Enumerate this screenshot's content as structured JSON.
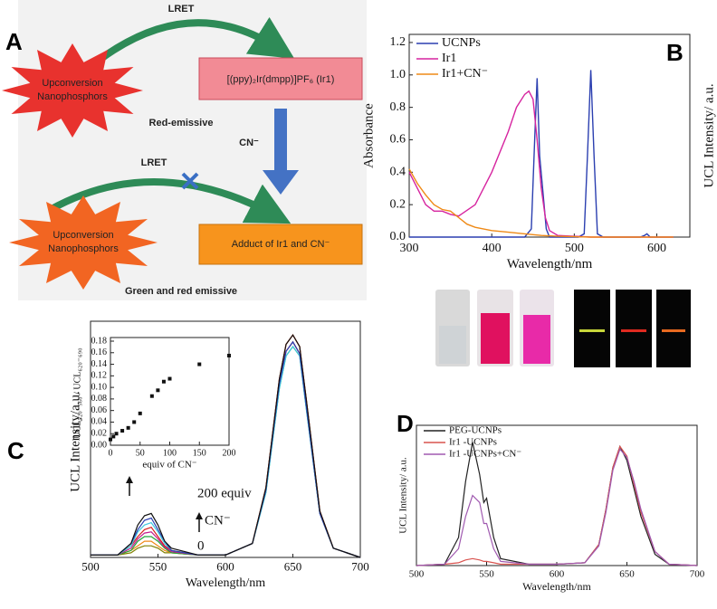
{
  "panel_labels": [
    "A",
    "B",
    "C",
    "D"
  ],
  "panel_a": {
    "top_lret": "LRET",
    "top_star": [
      "Upconversion",
      "Nanophosphors"
    ],
    "top_box": "[(ppy)₂Ir(dmpp)]PF₆ (Ir1)",
    "top_caption": "Red-emissive",
    "arrow_label": "CN⁻",
    "bottom_lret": "LRET",
    "bottom_star": [
      "Upconversion",
      "Nanophosphors"
    ],
    "bottom_box": "Adduct of Ir1 and CN⁻",
    "bottom_caption": "Green and red emissive"
  },
  "chart_data": [
    {
      "type": "line",
      "xlabel": "Wavelength/nm",
      "ylabel": "Absorbance",
      "right_label": "UCL Intensity/ a.u.",
      "xlim": [
        300,
        640
      ],
      "xticks": [
        300,
        400,
        500,
        600
      ],
      "ylim": [
        0,
        1.25
      ],
      "yticks": [
        {
          "value": 0,
          "label": "0.0"
        },
        {
          "value": 0.2,
          "label": "0.2"
        },
        {
          "value": 0.4,
          "label": "0.4"
        },
        {
          "value": 0.6,
          "label": "0.6"
        },
        {
          "value": 0.8,
          "label": "0.8"
        },
        {
          "value": 1,
          "label": "1.0"
        },
        {
          "value": 1.2,
          "label": "1.2"
        }
      ],
      "legend": "upper left",
      "series": [
        {
          "name": "UCNPs",
          "color": "#2b3fb0",
          "x": [
            300,
            440,
            448,
            452,
            455,
            458,
            462,
            466,
            470,
            505,
            512,
            516,
            520,
            524,
            528,
            535,
            580,
            585,
            588,
            592,
            620
          ],
          "values": [
            0,
            0,
            0.05,
            0.6,
            0.98,
            0.5,
            0.28,
            0.05,
            0,
            0,
            0.02,
            0.5,
            1.03,
            0.5,
            0.02,
            0,
            0,
            0.01,
            0.02,
            0,
            0
          ]
        },
        {
          "name": "Ir1",
          "color": "#d6249f",
          "x": [
            300,
            310,
            320,
            330,
            340,
            350,
            360,
            380,
            400,
            420,
            430,
            440,
            445,
            450,
            455,
            460,
            465,
            470,
            480,
            520,
            620
          ],
          "values": [
            0.4,
            0.3,
            0.2,
            0.16,
            0.16,
            0.14,
            0.13,
            0.2,
            0.4,
            0.65,
            0.8,
            0.88,
            0.9,
            0.85,
            0.6,
            0.3,
            0.12,
            0.04,
            0.01,
            0,
            0
          ]
        },
        {
          "name": "Ir1+CN⁻",
          "color": "#ef8a17",
          "x": [
            300,
            310,
            320,
            330,
            340,
            350,
            360,
            370,
            380,
            400,
            420,
            440,
            460,
            480,
            520,
            620
          ],
          "values": [
            0.42,
            0.33,
            0.26,
            0.2,
            0.17,
            0.16,
            0.12,
            0.08,
            0.06,
            0.04,
            0.03,
            0.02,
            0.01,
            0.005,
            0,
            0
          ]
        }
      ]
    },
    {
      "type": "line",
      "xlabel": "Wavelength/nm",
      "ylabel": "UCL Intensity/a.u.",
      "xlim": [
        500,
        700
      ],
      "xticks": [
        500,
        550,
        600,
        650,
        700
      ],
      "ylim": [
        0,
        1
      ],
      "annotations": [
        "200 equiv",
        "CN⁻",
        "0"
      ],
      "x": [
        500,
        520,
        530,
        535,
        540,
        545,
        550,
        555,
        560,
        580,
        600,
        620,
        630,
        640,
        645,
        650,
        655,
        660,
        670,
        680,
        700
      ],
      "series": [
        {
          "color": "#808000",
          "values": [
            0.01,
            0.01,
            0.02,
            0.04,
            0.05,
            0.05,
            0.04,
            0.02,
            0.02,
            0.01,
            0.01,
            0.06,
            0.29,
            0.75,
            0.89,
            0.93,
            0.88,
            0.65,
            0.19,
            0.04,
            0
          ]
        },
        {
          "color": "#ef8a17",
          "values": [
            0.01,
            0.01,
            0.03,
            0.05,
            0.07,
            0.07,
            0.05,
            0.03,
            0.02,
            0.01,
            0.01,
            0.06,
            0.3,
            0.77,
            0.92,
            0.96,
            0.91,
            0.68,
            0.2,
            0.04,
            0
          ]
        },
        {
          "color": "#22a33a",
          "values": [
            0.01,
            0.01,
            0.03,
            0.07,
            0.09,
            0.09,
            0.07,
            0.04,
            0.02,
            0.01,
            0.01,
            0.06,
            0.28,
            0.73,
            0.87,
            0.91,
            0.87,
            0.64,
            0.19,
            0.04,
            0
          ]
        },
        {
          "color": "#c21b8f",
          "values": [
            0.01,
            0.01,
            0.04,
            0.08,
            0.105,
            0.11,
            0.08,
            0.045,
            0.025,
            0.01,
            0.01,
            0.06,
            0.29,
            0.75,
            0.89,
            0.93,
            0.88,
            0.65,
            0.19,
            0.04,
            0
          ]
        },
        {
          "color": "#d42020",
          "values": [
            0.01,
            0.01,
            0.05,
            0.09,
            0.12,
            0.13,
            0.09,
            0.05,
            0.03,
            0.01,
            0.01,
            0.06,
            0.3,
            0.77,
            0.92,
            0.96,
            0.91,
            0.68,
            0.2,
            0.04,
            0
          ]
        },
        {
          "color": "#3fc9e0",
          "values": [
            0.01,
            0.01,
            0.05,
            0.11,
            0.14,
            0.15,
            0.11,
            0.06,
            0.03,
            0.01,
            0.01,
            0.06,
            0.28,
            0.73,
            0.87,
            0.91,
            0.87,
            0.64,
            0.19,
            0.04,
            0
          ]
        },
        {
          "color": "#2b3fb0",
          "values": [
            0.01,
            0.01,
            0.06,
            0.12,
            0.16,
            0.17,
            0.12,
            0.07,
            0.03,
            0.01,
            0.01,
            0.06,
            0.29,
            0.75,
            0.89,
            0.93,
            0.88,
            0.65,
            0.19,
            0.04,
            0
          ]
        },
        {
          "color": "#111111",
          "values": [
            0.01,
            0.01,
            0.06,
            0.14,
            0.18,
            0.19,
            0.14,
            0.07,
            0.04,
            0.01,
            0.01,
            0.06,
            0.3,
            0.77,
            0.92,
            0.96,
            0.91,
            0.68,
            0.2,
            0.04,
            0
          ]
        }
      ]
    },
    {
      "type": "scatter",
      "xlabel": "equiv of CN⁻",
      "ylabel": "UCL₅₂₀₋₅₆₀ / UCL₆₂₀₋₆₉₀",
      "color": "#111111",
      "xlim": [
        0,
        200
      ],
      "xticks": [
        0,
        50,
        100,
        150,
        200
      ],
      "ylim": [
        0,
        0.18
      ],
      "yticks": [
        {
          "value": 0,
          "label": "0.00"
        },
        {
          "value": 0.02,
          "label": "0.02"
        },
        {
          "value": 0.04,
          "label": "0.04"
        },
        {
          "value": 0.06,
          "label": "0.06"
        },
        {
          "value": 0.08,
          "label": "0.08"
        },
        {
          "value": 0.1,
          "label": "0.10"
        },
        {
          "value": 0.12,
          "label": "0.12"
        },
        {
          "value": 0.14,
          "label": "0.14"
        },
        {
          "value": 0.16,
          "label": "0.16"
        },
        {
          "value": 0.18,
          "label": "0.18"
        }
      ],
      "x": [
        0,
        5,
        10,
        20,
        30,
        40,
        50,
        70,
        80,
        90,
        100,
        150,
        200
      ],
      "values": [
        0.01,
        0.015,
        0.02,
        0.025,
        0.03,
        0.04,
        0.055,
        0.085,
        0.095,
        0.11,
        0.115,
        0.14,
        0.155
      ]
    },
    {
      "type": "line",
      "xlabel": "Wavelength/nm",
      "ylabel": "UCL Intensity/ a.u.",
      "xlim": [
        500,
        700
      ],
      "xticks": [
        500,
        550,
        600,
        650,
        700
      ],
      "ylim": [
        0,
        1
      ],
      "legend": "upper left",
      "x": [
        500,
        520,
        530,
        535,
        540,
        545,
        548,
        550,
        555,
        560,
        580,
        600,
        620,
        630,
        635,
        640,
        645,
        650,
        655,
        660,
        670,
        680,
        700
      ],
      "series": [
        {
          "name": "PEG-UCNPs",
          "color": "#222222",
          "values": [
            0,
            0.01,
            0.2,
            0.6,
            0.88,
            0.65,
            0.45,
            0.48,
            0.2,
            0.05,
            0.01,
            0.01,
            0.02,
            0.15,
            0.4,
            0.7,
            0.85,
            0.75,
            0.55,
            0.35,
            0.08,
            0.01,
            0
          ]
        },
        {
          "name": "Ir1 -UCNPs",
          "color": "#d9534f",
          "values": [
            0,
            0.01,
            0.02,
            0.04,
            0.05,
            0.04,
            0.03,
            0.03,
            0.02,
            0.01,
            0.01,
            0.01,
            0.02,
            0.15,
            0.4,
            0.7,
            0.85,
            0.78,
            0.58,
            0.38,
            0.1,
            0.01,
            0
          ]
        },
        {
          "name": "Ir1 -UCNPs+CN⁻",
          "color": "#a05ab0",
          "values": [
            0,
            0.01,
            0.12,
            0.35,
            0.5,
            0.45,
            0.3,
            0.3,
            0.12,
            0.03,
            0.01,
            0.01,
            0.02,
            0.14,
            0.38,
            0.68,
            0.83,
            0.77,
            0.6,
            0.4,
            0.1,
            0.01,
            0
          ]
        }
      ]
    }
  ]
}
